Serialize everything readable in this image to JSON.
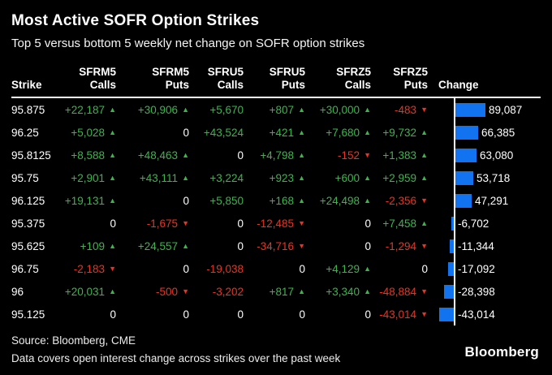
{
  "title": "Most Active SOFR Option Strikes",
  "subtitle": "Top 5 versus bottom 5 weekly net change on SOFR option strikes",
  "table": {
    "columns": [
      {
        "line1": "",
        "line2": "Strike"
      },
      {
        "line1": "SFRM5",
        "line2": "Calls"
      },
      {
        "line1": "SFRM5",
        "line2": "Puts"
      },
      {
        "line1": "SFRU5",
        "line2": "Calls"
      },
      {
        "line1": "SFRU5",
        "line2": "Puts"
      },
      {
        "line1": "SFRZ5",
        "line2": "Calls"
      },
      {
        "line1": "SFRZ5",
        "line2": "Puts"
      },
      {
        "line1": "",
        "line2": "Change"
      }
    ],
    "rows": [
      {
        "strike": "95.875",
        "cells": [
          {
            "text": "+22,187",
            "arrow": "up"
          },
          {
            "text": "+30,906",
            "arrow": "up"
          },
          {
            "text": "+5,670",
            "arrow": "none"
          },
          {
            "text": "+807",
            "arrow": "up"
          },
          {
            "text": "+30,000",
            "arrow": "up"
          },
          {
            "text": "-483",
            "arrow": "down"
          }
        ],
        "change": 89087,
        "change_label": "89,087"
      },
      {
        "strike": "96.25",
        "cells": [
          {
            "text": "+5,028",
            "arrow": "up"
          },
          {
            "text": "0",
            "arrow": "none"
          },
          {
            "text": "+43,524",
            "arrow": "none"
          },
          {
            "text": "+421",
            "arrow": "up"
          },
          {
            "text": "+7,680",
            "arrow": "up"
          },
          {
            "text": "+9,732",
            "arrow": "up"
          }
        ],
        "change": 66385,
        "change_label": "66,385"
      },
      {
        "strike": "95.8125",
        "cells": [
          {
            "text": "+8,588",
            "arrow": "up"
          },
          {
            "text": "+48,463",
            "arrow": "up"
          },
          {
            "text": "0",
            "arrow": "none"
          },
          {
            "text": "+4,798",
            "arrow": "up"
          },
          {
            "text": "-152",
            "arrow": "down"
          },
          {
            "text": "+1,383",
            "arrow": "up"
          }
        ],
        "change": 63080,
        "change_label": "63,080"
      },
      {
        "strike": "95.75",
        "cells": [
          {
            "text": "+2,901",
            "arrow": "up"
          },
          {
            "text": "+43,111",
            "arrow": "up"
          },
          {
            "text": "+3,224",
            "arrow": "none"
          },
          {
            "text": "+923",
            "arrow": "up"
          },
          {
            "text": "+600",
            "arrow": "up"
          },
          {
            "text": "+2,959",
            "arrow": "up"
          }
        ],
        "change": 53718,
        "change_label": "53,718"
      },
      {
        "strike": "96.125",
        "cells": [
          {
            "text": "+19,131",
            "arrow": "up"
          },
          {
            "text": "0",
            "arrow": "none"
          },
          {
            "text": "+5,850",
            "arrow": "none"
          },
          {
            "text": "+168",
            "arrow": "up"
          },
          {
            "text": "+24,498",
            "arrow": "up"
          },
          {
            "text": "-2,356",
            "arrow": "down"
          }
        ],
        "change": 47291,
        "change_label": "47,291"
      },
      {
        "strike": "95.375",
        "cells": [
          {
            "text": "0",
            "arrow": "none"
          },
          {
            "text": "-1,675",
            "arrow": "down"
          },
          {
            "text": "0",
            "arrow": "none"
          },
          {
            "text": "-12,485",
            "arrow": "down"
          },
          {
            "text": "0",
            "arrow": "none"
          },
          {
            "text": "+7,458",
            "arrow": "up"
          }
        ],
        "change": -6702,
        "change_label": "-6,702"
      },
      {
        "strike": "95.625",
        "cells": [
          {
            "text": "+109",
            "arrow": "up"
          },
          {
            "text": "+24,557",
            "arrow": "up"
          },
          {
            "text": "0",
            "arrow": "none"
          },
          {
            "text": "-34,716",
            "arrow": "down"
          },
          {
            "text": "0",
            "arrow": "none"
          },
          {
            "text": "-1,294",
            "arrow": "down"
          }
        ],
        "change": -11344,
        "change_label": "-11,344"
      },
      {
        "strike": "96.75",
        "cells": [
          {
            "text": "-2,183",
            "arrow": "down"
          },
          {
            "text": "0",
            "arrow": "none"
          },
          {
            "text": "-19,038",
            "arrow": "none"
          },
          {
            "text": "0",
            "arrow": "none"
          },
          {
            "text": "+4,129",
            "arrow": "up"
          },
          {
            "text": "0",
            "arrow": "none"
          }
        ],
        "change": -17092,
        "change_label": "-17,092"
      },
      {
        "strike": "96",
        "cells": [
          {
            "text": "+20,031",
            "arrow": "up"
          },
          {
            "text": "-500",
            "arrow": "down"
          },
          {
            "text": "-3,202",
            "arrow": "none"
          },
          {
            "text": "+817",
            "arrow": "up"
          },
          {
            "text": "+3,340",
            "arrow": "up"
          },
          {
            "text": "-48,884",
            "arrow": "down"
          }
        ],
        "change": -28398,
        "change_label": "-28,398"
      },
      {
        "strike": "95.125",
        "cells": [
          {
            "text": "0",
            "arrow": "none"
          },
          {
            "text": "0",
            "arrow": "none"
          },
          {
            "text": "0",
            "arrow": "none"
          },
          {
            "text": "0",
            "arrow": "none"
          },
          {
            "text": "0",
            "arrow": "none"
          },
          {
            "text": "-43,014",
            "arrow": "down"
          }
        ],
        "change": -43014,
        "change_label": "-43,014"
      }
    ]
  },
  "chart_data": {
    "type": "table",
    "title": "Most Active SOFR Option Strikes",
    "subtitle": "Top 5 versus bottom 5 weekly net change on SOFR option strikes",
    "columns": [
      "Strike",
      "SFRM5 Calls",
      "SFRM5 Puts",
      "SFRU5 Calls",
      "SFRU5 Puts",
      "SFRZ5 Calls",
      "SFRZ5 Puts",
      "Change"
    ],
    "rows": [
      [
        95.875,
        22187,
        30906,
        5670,
        807,
        30000,
        -483,
        89087
      ],
      [
        96.25,
        5028,
        0,
        43524,
        421,
        7680,
        9732,
        66385
      ],
      [
        95.8125,
        8588,
        48463,
        0,
        4798,
        -152,
        1383,
        63080
      ],
      [
        95.75,
        2901,
        43111,
        3224,
        923,
        600,
        2959,
        53718
      ],
      [
        96.125,
        19131,
        0,
        5850,
        168,
        24498,
        -2356,
        47291
      ],
      [
        95.375,
        0,
        -1675,
        0,
        -12485,
        0,
        7458,
        -6702
      ],
      [
        95.625,
        109,
        24557,
        0,
        -34716,
        0,
        -1294,
        -11344
      ],
      [
        96.75,
        -2183,
        0,
        -19038,
        0,
        4129,
        0,
        -17092
      ],
      [
        96,
        20031,
        -500,
        -3202,
        817,
        3340,
        -48884,
        -28398
      ],
      [
        95.125,
        0,
        0,
        0,
        0,
        0,
        -43014,
        -43014
      ]
    ],
    "bar_column": "Change",
    "bar_range": [
      -43014,
      89087
    ],
    "bar_baseline": 0,
    "legend": "none",
    "grid": "off"
  },
  "footer": {
    "source": "Source: Bloomberg, CME",
    "note": "Data covers open interest change across strikes over the past week",
    "logo": "Bloomberg"
  },
  "colors": {
    "background": "#000000",
    "text": "#ffffff",
    "positive": "#3ab64c",
    "negative": "#ea3323",
    "bar": "#1173f0",
    "baseline": "#ffffff"
  }
}
